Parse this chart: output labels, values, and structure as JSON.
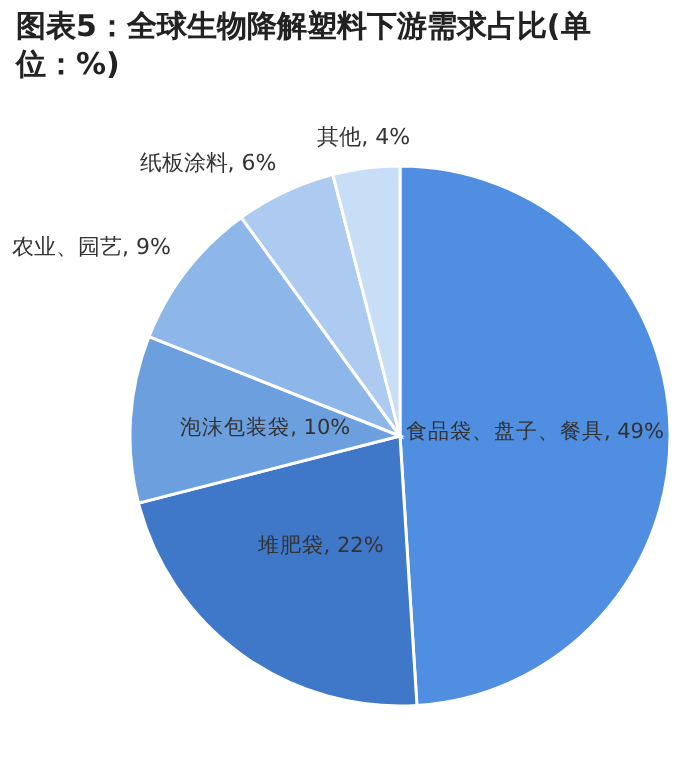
{
  "chart_data": {
    "type": "pie",
    "title": "图表5：全球生物降解塑料下游需求占比(单位：%)",
    "categories": [
      "食品袋、盘子、餐具",
      "堆肥袋",
      "泡沫包装袋",
      "农业、园艺",
      "纸板涂料",
      "其他"
    ],
    "values": [
      49,
      22,
      10,
      9,
      6,
      4
    ],
    "value_labels": [
      "49%",
      "22%",
      "10%",
      "9%",
      "6%",
      "4%"
    ],
    "colors": [
      "#4f8ee0",
      "#3f78c9",
      "#6c9fdd",
      "#8db6e9",
      "#adcbf0",
      "#c8ddf6"
    ]
  }
}
